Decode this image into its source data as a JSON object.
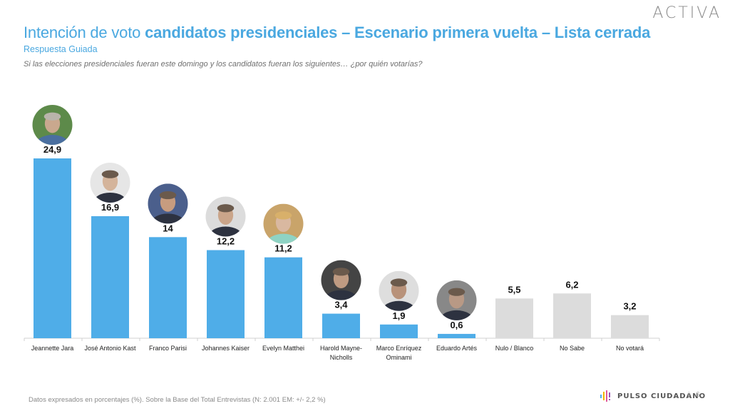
{
  "header": {
    "logo": "ACTIVA",
    "title_light": "Intención de voto ",
    "title_bold": "candidatos presidenciales – Escenario primera vuelta – Lista cerrada",
    "subtitle": "Respuesta Guiada",
    "question": "Si las elecciones presidenciales fueran este domingo y los candidatos fueran los siguientes… ¿por quién votarías?"
  },
  "footer": {
    "note": "Datos expresados en porcentajes (%). Sobre la Base del Total Entrevistas (N: 2.001  EM: +/- 2,2 %)",
    "brand": "PULSO CIUDADANO",
    "separator": "|",
    "page": "6"
  },
  "colors": {
    "candidate_bar": "#4fade8",
    "other_bar": "#dcdcdc",
    "title": "#4aa8e0"
  },
  "chart_data": {
    "type": "bar",
    "title": "Intención de voto candidatos presidenciales – Escenario primera vuelta – Lista cerrada",
    "xlabel": "",
    "ylabel": "%",
    "ylim": [
      0,
      25
    ],
    "grid": false,
    "categories": [
      [
        "Jeannette Jara"
      ],
      [
        "José Antonio Kast"
      ],
      [
        "Franco Parisi"
      ],
      [
        "Johannes Kaiser"
      ],
      [
        "Evelyn Matthei"
      ],
      [
        "Harold Mayne-",
        "Nicholls"
      ],
      [
        "Marco Enríquez",
        "Ominami"
      ],
      [
        "Eduardo Artés"
      ],
      [
        "Nulo / Blanco"
      ],
      [
        "No Sabe"
      ],
      [
        "No votará"
      ]
    ],
    "values": [
      24.9,
      16.9,
      14,
      12.2,
      11.2,
      3.4,
      1.9,
      0.6,
      5.5,
      6.2,
      3.2
    ],
    "labels": [
      "24,9",
      "16,9",
      "14",
      "12,2",
      "11,2",
      "3,4",
      "1,9",
      "0,6",
      "5,5",
      "6,2",
      "3,2"
    ],
    "is_candidate": [
      true,
      true,
      true,
      true,
      true,
      true,
      true,
      true,
      false,
      false,
      false
    ],
    "has_photo": [
      true,
      true,
      true,
      true,
      true,
      true,
      true,
      true,
      false,
      false,
      false
    ]
  }
}
